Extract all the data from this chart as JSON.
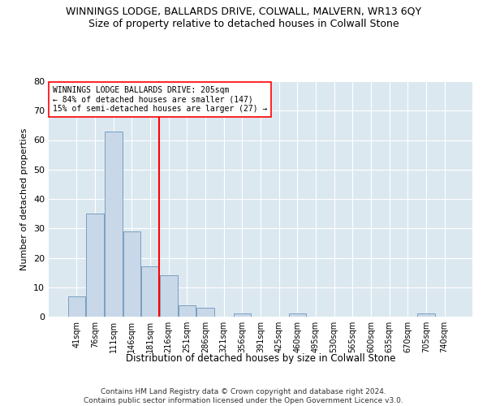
{
  "title": "WINNINGS LODGE, BALLARDS DRIVE, COLWALL, MALVERN, WR13 6QY",
  "subtitle": "Size of property relative to detached houses in Colwall Stone",
  "xlabel": "Distribution of detached houses by size in Colwall Stone",
  "ylabel": "Number of detached properties",
  "footer_line1": "Contains HM Land Registry data © Crown copyright and database right 2024.",
  "footer_line2": "Contains public sector information licensed under the Open Government Licence v3.0.",
  "bin_labels": [
    "41sqm",
    "76sqm",
    "111sqm",
    "146sqm",
    "181sqm",
    "216sqm",
    "251sqm",
    "286sqm",
    "321sqm",
    "356sqm",
    "391sqm",
    "425sqm",
    "460sqm",
    "495sqm",
    "530sqm",
    "565sqm",
    "600sqm",
    "635sqm",
    "670sqm",
    "705sqm",
    "740sqm"
  ],
  "bar_values": [
    7,
    35,
    63,
    29,
    17,
    14,
    4,
    3,
    0,
    1,
    0,
    0,
    1,
    0,
    0,
    0,
    0,
    0,
    0,
    1,
    0
  ],
  "bar_color": "#c8d8e8",
  "bar_edge_color": "#7a9fc0",
  "vline_x": 5.0,
  "vline_color": "red",
  "ylim": [
    0,
    80
  ],
  "yticks": [
    0,
    10,
    20,
    30,
    40,
    50,
    60,
    70,
    80
  ],
  "annotation_title": "WINNINGS LODGE BALLARDS DRIVE: 205sqm",
  "annotation_line1": "← 84% of detached houses are smaller (147)",
  "annotation_line2": "15% of semi-detached houses are larger (27) →",
  "bg_color": "#dce8f0",
  "title_fontsize": 9,
  "subtitle_fontsize": 9
}
